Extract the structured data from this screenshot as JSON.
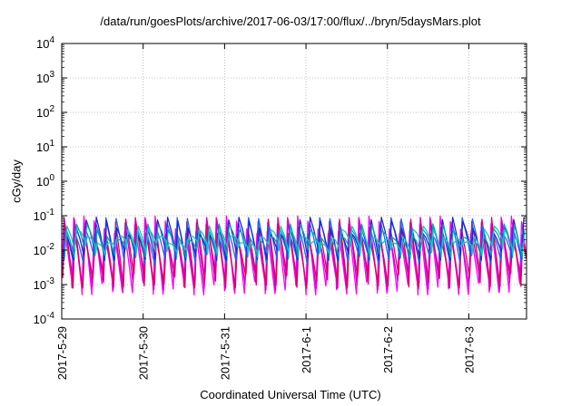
{
  "chart_data": {
    "type": "line",
    "title": "/data/run/goesPlots/archive/2017-06-03/17:00/flux/../bryn/5daysMars.plot",
    "xlabel": "Coordinated Universal Time (UTC)",
    "ylabel": "cGy/day",
    "yscale": "log",
    "ylim": [
      0.0001,
      10000
    ],
    "xlim": [
      "2017-05-29T00:00",
      "2017-06-03T17:00"
    ],
    "x_ticks": [
      "2017-5-29",
      "2017-5-30",
      "2017-5-31",
      "2017-6-1",
      "2017-6-2",
      "2017-6-3"
    ],
    "y_ticks": [
      {
        "value": 0.0001,
        "base": "10",
        "exp": "-4"
      },
      {
        "value": 0.001,
        "base": "10",
        "exp": "-3"
      },
      {
        "value": 0.01,
        "base": "10",
        "exp": "-2"
      },
      {
        "value": 0.1,
        "base": "10",
        "exp": "-1"
      },
      {
        "value": 1,
        "base": "10",
        "exp": "0"
      },
      {
        "value": 10,
        "base": "10",
        "exp": "1"
      },
      {
        "value": 100,
        "base": "10",
        "exp": "2"
      },
      {
        "value": 1000,
        "base": "10",
        "exp": "3"
      },
      {
        "value": 10000,
        "base": "10",
        "exp": "4"
      }
    ],
    "grid": true,
    "series_colors": [
      "#ff00ff",
      "#cc00cc",
      "#e0005a",
      "#1e64ff",
      "#2323d2",
      "#00a8a8",
      "#14c8c8"
    ],
    "series": [
      {
        "peak_range": [
          0.03,
          0.1
        ],
        "trough_range": [
          0.0005,
          0.0015
        ]
      },
      {
        "peak_range": [
          0.025,
          0.09
        ],
        "trough_range": [
          0.0007,
          0.002
        ]
      },
      {
        "peak_range": [
          0.02,
          0.08
        ],
        "trough_range": [
          0.0008,
          0.0025
        ]
      },
      {
        "peak_range": [
          0.03,
          0.09
        ],
        "trough_range": [
          0.004,
          0.009
        ]
      },
      {
        "peak_range": [
          0.03,
          0.09
        ],
        "trough_range": [
          0.005,
          0.012
        ]
      },
      {
        "peak_range": [
          0.02,
          0.06
        ],
        "trough_range": [
          0.006,
          0.015
        ]
      },
      {
        "peak_range": [
          0.015,
          0.05
        ],
        "trough_range": [
          0.008,
          0.02
        ]
      }
    ]
  }
}
